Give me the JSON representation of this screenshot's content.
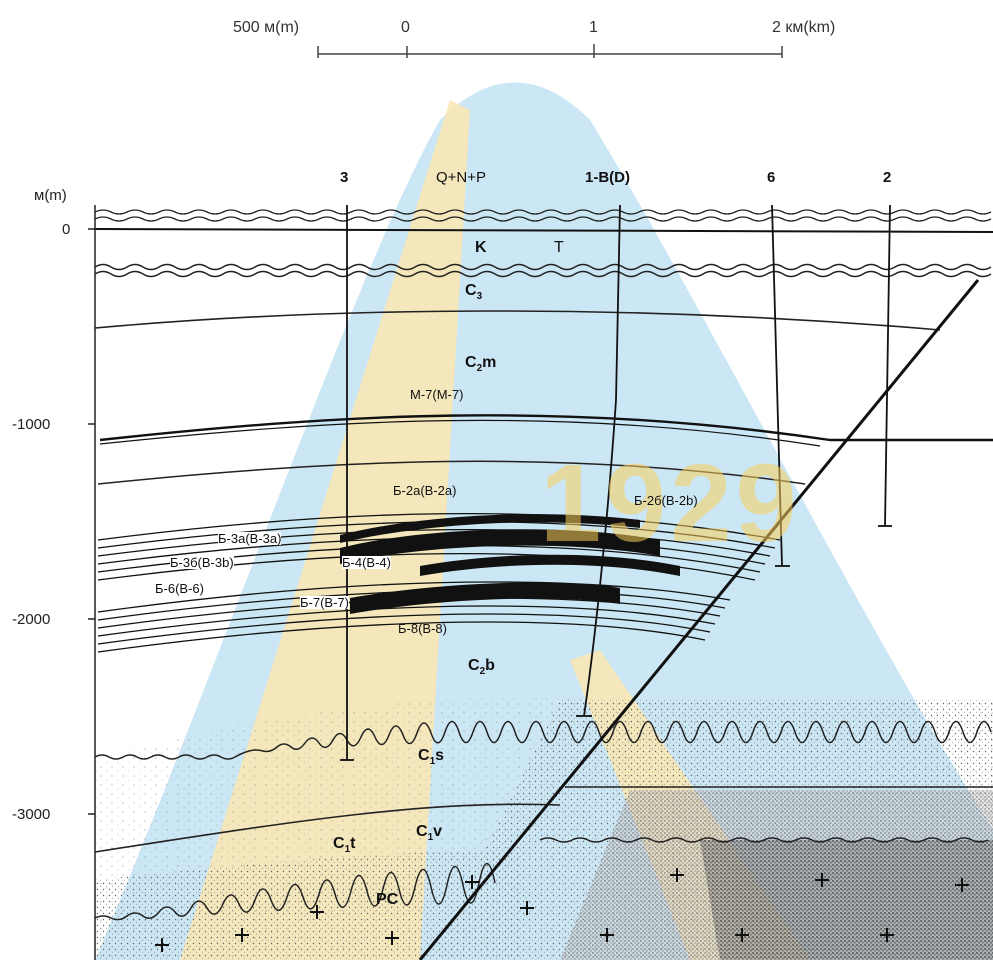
{
  "scale_bar": {
    "label_left": "500 м(m)",
    "ticks": [
      "0",
      "1",
      "2 км(km)"
    ]
  },
  "depth_axis": {
    "unit": "м(m)",
    "ticks": [
      "0",
      "-1000",
      "-2000",
      "-3000"
    ]
  },
  "wells": [
    {
      "name": "3"
    },
    {
      "name": "1-B(D)"
    },
    {
      "name": "6"
    },
    {
      "name": "2"
    }
  ],
  "top_unit": "Q+N+P",
  "units": {
    "k": "K",
    "c3": "C",
    "c3_sub": "3",
    "c2m": "C",
    "c2m_sub": "2",
    "c2m_suffix": "m",
    "c2b": "C",
    "c2b_sub": "2",
    "c2b_suffix": "b",
    "c1s": "C",
    "c1s_sub": "1",
    "c1s_suffix": "s",
    "c1t": "C",
    "c1t_sub": "1",
    "c1t_suffix": "t",
    "c1v": "C",
    "c1v_sub": "1",
    "c1v_suffix": "v",
    "pc": "PC"
  },
  "layers": {
    "m7": "М-7(М-7)",
    "b2a": "Б-2а(В-2а)",
    "b2b": "Б-2б(В-2b)",
    "b3a": "Б-3а(В-3а)",
    "b3b": "Б-3б(В-3b)",
    "b4": "Б-4(В-4)",
    "b6": "Б-6(В-6)",
    "b7": "Б-7(В-7)",
    "b8": "Б-8(В-8)"
  },
  "watermark": {
    "text": "1929",
    "colors": {
      "blue": "#b9def0",
      "yellow": "#fbe6b0"
    }
  }
}
